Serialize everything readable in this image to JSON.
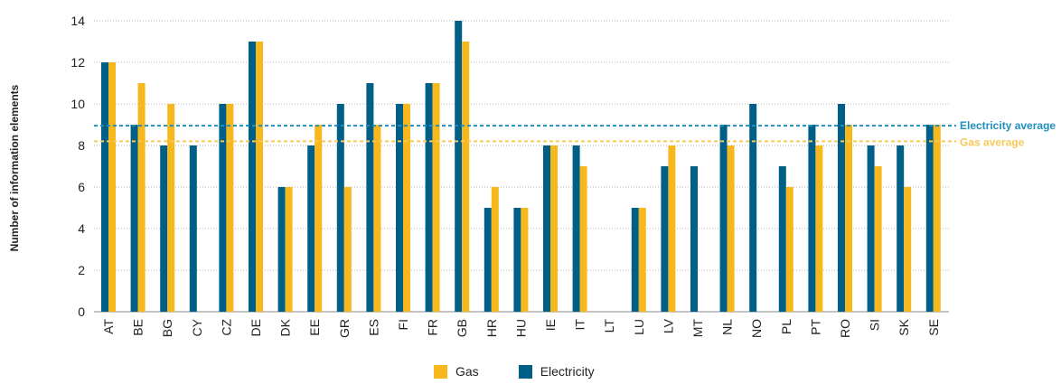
{
  "chart_data": {
    "type": "bar",
    "ylabel": "Number of information elements",
    "ylim": [
      0,
      14
    ],
    "yticks": [
      "0",
      "2",
      "4",
      "6",
      "8",
      "10",
      "12",
      "14"
    ],
    "grid": true,
    "categories": [
      "AT",
      "BE",
      "BG",
      "CY",
      "CZ",
      "DE",
      "DK",
      "EE",
      "GR",
      "ES",
      "FI",
      "FR",
      "GB",
      "HR",
      "HU",
      "IE",
      "IT",
      "LT",
      "LU",
      "LV",
      "MT",
      "NL",
      "NO",
      "PL",
      "PT",
      "RO",
      "SI",
      "SK",
      "SE"
    ],
    "series": [
      {
        "name": "Electricity",
        "color": "#005f87",
        "values": [
          12,
          9,
          8,
          8,
          10,
          13,
          6,
          8,
          10,
          11,
          10,
          11,
          14,
          5,
          5,
          8,
          8,
          null,
          5,
          7,
          7,
          9,
          10,
          7,
          9,
          10,
          8,
          8,
          9
        ]
      },
      {
        "name": "Gas",
        "color": "#f7b81d",
        "values": [
          12,
          11,
          10,
          null,
          10,
          13,
          6,
          9,
          6,
          9,
          10,
          11,
          13,
          6,
          5,
          8,
          7,
          null,
          5,
          8,
          null,
          8,
          null,
          6,
          8,
          9,
          7,
          6,
          9
        ]
      }
    ],
    "reference_lines": [
      {
        "label": "Electricity average",
        "value": 8.95,
        "color": "#1f8fbf"
      },
      {
        "label": "Gas average",
        "value": 8.2,
        "color": "#f7c95a"
      }
    ],
    "legend": [
      {
        "label": "Gas",
        "color": "#f7b81d"
      },
      {
        "label": "Electricity",
        "color": "#005f87"
      }
    ],
    "legend_position": "bottom"
  }
}
